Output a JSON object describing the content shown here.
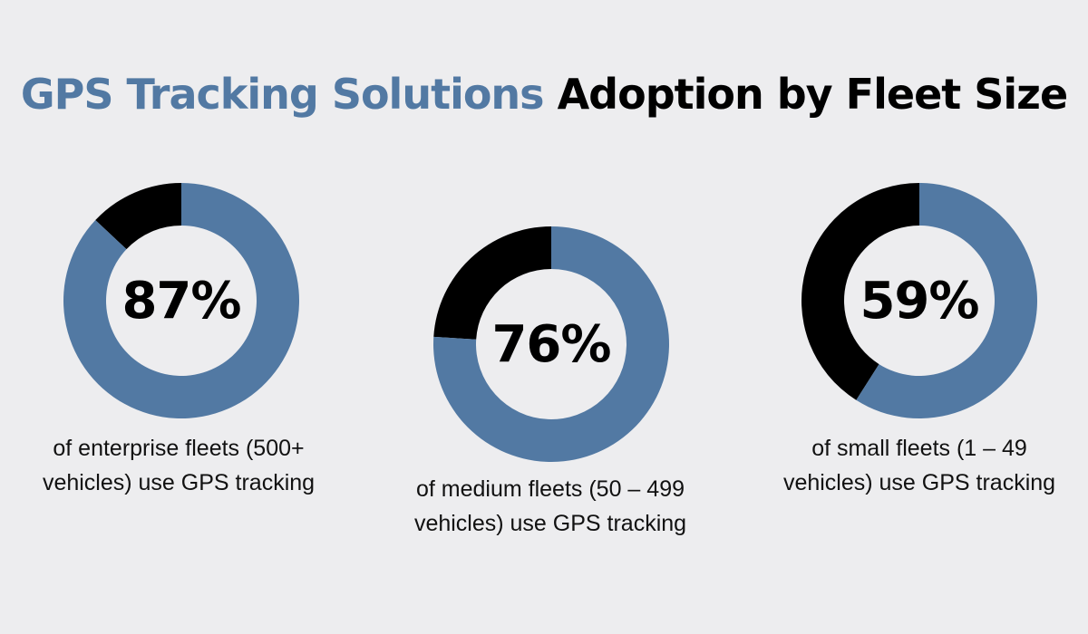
{
  "title": {
    "highlight": "GPS Tracking Solutions",
    "rest": "Adoption by Fleet Size",
    "highlight_color": "#5279a3"
  },
  "chart_data": [
    {
      "type": "pie",
      "value": 87,
      "label": "87%",
      "caption": "of enterprise fleets (500+ vehicles) use GPS tracking",
      "colors": {
        "value": "#5279a3",
        "remainder": "#000000"
      }
    },
    {
      "type": "pie",
      "value": 76,
      "label": "76%",
      "caption": "of medium fleets (50 – 499 vehicles) use GPS tracking",
      "colors": {
        "value": "#5279a3",
        "remainder": "#000000"
      }
    },
    {
      "type": "pie",
      "value": 59,
      "label": "59%",
      "caption": "of small fleets (1 – 49 vehicles) use GPS tracking",
      "colors": {
        "value": "#5279a3",
        "remainder": "#000000"
      }
    }
  ]
}
